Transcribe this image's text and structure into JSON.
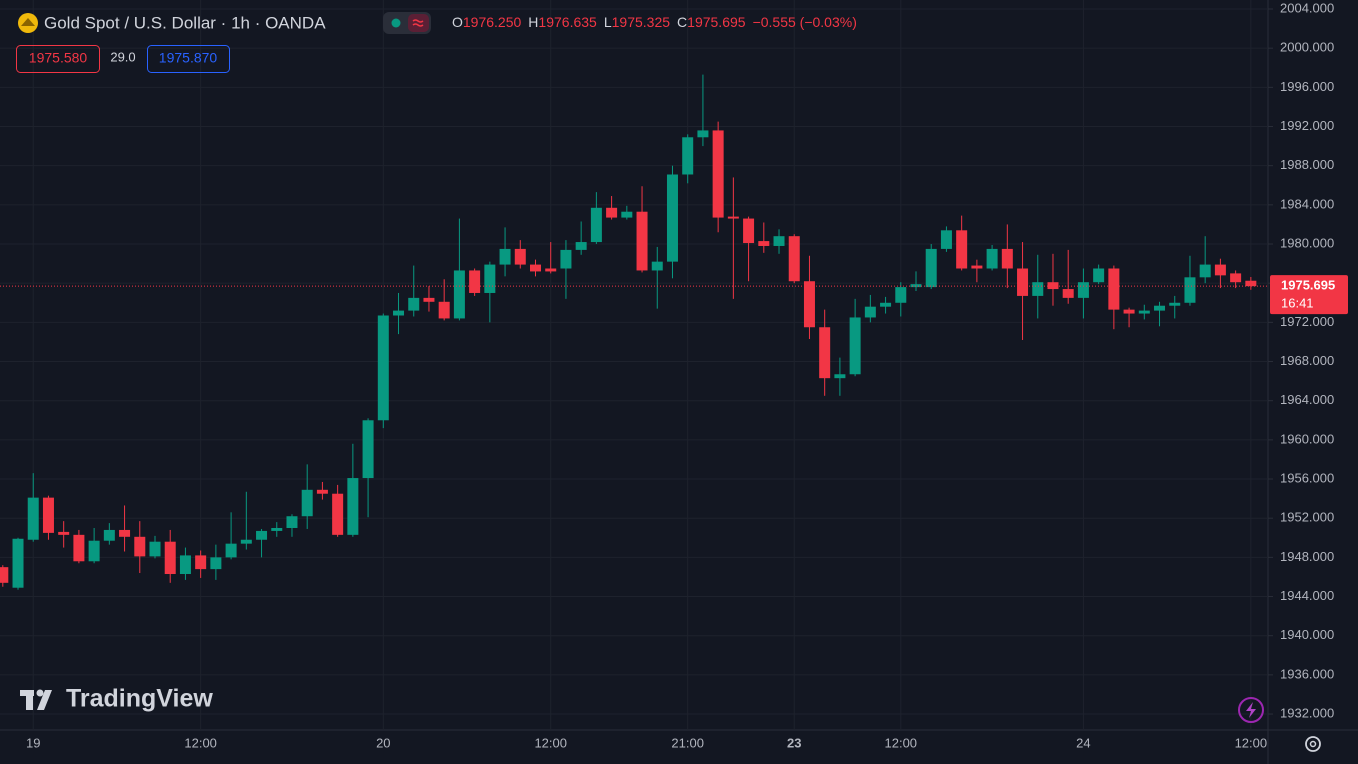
{
  "chart_data": {
    "type": "candlestick",
    "title": "Gold Spot / U.S. Dollar · 1h · OANDA",
    "legend": [
      {
        "label": "O",
        "value": "1976.250"
      },
      {
        "label": "H",
        "value": "1976.635"
      },
      {
        "label": "L",
        "value": "1975.325"
      },
      {
        "label": "C",
        "value": "1975.695"
      }
    ],
    "change": "−0.555 (−0.03%)",
    "bid": "1975.580",
    "spread": "29.0",
    "ask": "1975.870",
    "watermark": "TradingView",
    "last_price": 1975.695,
    "countdown": "16:41",
    "up_color": "#089981",
    "down_color": "#f23645",
    "grid": true,
    "categories": [
      null,
      null,
      "19",
      null,
      null,
      null,
      null,
      null,
      null,
      null,
      null,
      null,
      null,
      "12:00",
      null,
      null,
      null,
      null,
      null,
      null,
      null,
      null,
      null,
      null,
      null,
      "20",
      null,
      null,
      null,
      null,
      null,
      null,
      null,
      null,
      null,
      null,
      "12:00",
      null,
      null,
      null,
      null,
      null,
      null,
      null,
      null,
      "21:00",
      null,
      null,
      null,
      null,
      null,
      null,
      "23",
      null,
      null,
      null,
      null,
      null,
      null,
      "12:00",
      null,
      null,
      null,
      null,
      null,
      null,
      null,
      null,
      null,
      null,
      null,
      "24",
      null,
      null,
      null,
      null,
      null,
      null,
      null,
      null,
      null,
      null,
      "12:00"
    ],
    "open": [
      1947.0,
      1944.9,
      1949.8,
      1954.1,
      1950.6,
      1950.3,
      1947.6,
      1949.7,
      1950.8,
      1950.1,
      1948.1,
      1949.6,
      1946.3,
      1948.2,
      1946.8,
      1948.0,
      1949.4,
      1949.8,
      1950.7,
      1951.0,
      1952.2,
      1954.9,
      1954.5,
      1950.3,
      1956.1,
      1962.0,
      1972.7,
      1973.2,
      1974.5,
      1974.1,
      1972.4,
      1977.3,
      1975.0,
      1977.9,
      1979.5,
      1977.9,
      1977.5,
      1977.5,
      1979.4,
      1980.2,
      1983.7,
      1982.7,
      1983.3,
      1977.3,
      1978.2,
      1987.1,
      1990.9,
      1991.6,
      1982.8,
      1982.6,
      1980.3,
      1979.8,
      1980.8,
      1976.2,
      1971.5,
      1966.3,
      1966.7,
      1972.5,
      1973.6,
      1974.0,
      1975.6,
      1975.6,
      1979.5,
      1981.4,
      1977.8,
      1977.5,
      1979.5,
      1977.5,
      1974.7,
      1976.1,
      1975.4,
      1974.5,
      1976.1,
      1977.5,
      1973.3,
      1972.9,
      1973.2,
      1973.7,
      1974.0,
      1976.6,
      1977.9,
      1977.0,
      1976.25
    ],
    "high": [
      1947.2,
      1950.0,
      1956.6,
      1954.3,
      1951.7,
      1950.8,
      1951.0,
      1951.5,
      1953.3,
      1951.7,
      1950.2,
      1950.8,
      1949.0,
      1948.7,
      1949.3,
      1952.6,
      1954.7,
      1950.9,
      1951.6,
      1952.4,
      1957.5,
      1955.7,
      1955.4,
      1959.6,
      1962.2,
      1972.9,
      1975.0,
      1977.8,
      1975.7,
      1976.4,
      1982.6,
      1977.5,
      1978.2,
      1981.7,
      1980.4,
      1978.4,
      1980.2,
      1980.4,
      1982.3,
      1985.3,
      1984.9,
      1983.9,
      1985.9,
      1979.7,
      1988.0,
      1991.2,
      1997.3,
      1992.5,
      1986.8,
      1982.8,
      1982.2,
      1981.5,
      1981.0,
      1978.8,
      1973.3,
      1968.4,
      1974.4,
      1974.8,
      1974.6,
      1976.1,
      1977.2,
      1980.0,
      1981.8,
      1982.9,
      1978.4,
      1979.9,
      1982.0,
      1980.2,
      1978.9,
      1979.0,
      1979.4,
      1977.5,
      1977.9,
      1977.8,
      1973.5,
      1973.8,
      1974.1,
      1974.7,
      1978.8,
      1980.8,
      1978.5,
      1977.3,
      1976.635
    ],
    "low": [
      1945.0,
      1944.7,
      1949.6,
      1949.8,
      1949.0,
      1947.4,
      1947.4,
      1949.3,
      1948.6,
      1946.4,
      1947.9,
      1945.4,
      1945.7,
      1945.9,
      1945.7,
      1947.8,
      1948.8,
      1948.0,
      1950.1,
      1950.1,
      1950.9,
      1953.9,
      1950.1,
      1950.1,
      1952.1,
      1961.2,
      1970.8,
      1972.6,
      1973.1,
      1972.2,
      1972.2,
      1974.7,
      1972.0,
      1976.7,
      1977.5,
      1976.7,
      1977.0,
      1974.4,
      1978.9,
      1980.0,
      1982.5,
      1982.5,
      1977.1,
      1973.4,
      1976.5,
      1986.2,
      1990.0,
      1981.2,
      1974.4,
      1976.2,
      1979.1,
      1979.0,
      1976.0,
      1970.3,
      1964.5,
      1964.5,
      1966.5,
      1972.0,
      1972.9,
      1972.6,
      1975.2,
      1975.4,
      1979.2,
      1977.3,
      1976.1,
      1977.3,
      1975.5,
      1970.2,
      1972.4,
      1973.7,
      1973.9,
      1972.4,
      1975.9,
      1971.3,
      1971.5,
      1972.3,
      1971.6,
      1972.4,
      1973.7,
      1976.0,
      1975.5,
      1975.5,
      1975.325
    ],
    "close": [
      1945.4,
      1949.9,
      1954.1,
      1950.5,
      1950.3,
      1947.6,
      1949.7,
      1950.8,
      1950.1,
      1948.1,
      1949.6,
      1946.3,
      1948.2,
      1946.8,
      1948.0,
      1949.4,
      1949.8,
      1950.7,
      1951.0,
      1952.2,
      1954.9,
      1954.5,
      1950.3,
      1956.1,
      1962.0,
      1972.7,
      1973.2,
      1974.5,
      1974.1,
      1972.4,
      1977.3,
      1975.0,
      1977.9,
      1979.5,
      1977.9,
      1977.2,
      1977.2,
      1979.4,
      1980.2,
      1983.7,
      1982.7,
      1983.3,
      1977.3,
      1978.2,
      1987.1,
      1990.9,
      1991.6,
      1982.7,
      1982.6,
      1980.1,
      1979.8,
      1980.8,
      1976.2,
      1971.5,
      1966.3,
      1966.7,
      1972.5,
      1973.6,
      1974.0,
      1975.6,
      1975.9,
      1979.5,
      1981.4,
      1977.5,
      1977.5,
      1979.5,
      1977.5,
      1974.7,
      1976.1,
      1975.4,
      1974.5,
      1976.1,
      1977.5,
      1973.3,
      1972.9,
      1973.2,
      1973.7,
      1974.0,
      1976.6,
      1977.9,
      1976.8,
      1976.1,
      1975.695
    ],
    "ylim": [
      1930.37,
      2004.92
    ],
    "yticks": [
      {
        "value": 2004,
        "label": "2004.000"
      },
      {
        "value": 2000,
        "label": "2000.000"
      },
      {
        "value": 1996,
        "label": "1996.000"
      },
      {
        "value": 1992,
        "label": "1992.000"
      },
      {
        "value": 1988,
        "label": "1988.000"
      },
      {
        "value": 1984,
        "label": "1984.000"
      },
      {
        "value": 1980,
        "label": "1980.000"
      },
      {
        "value": 1976,
        "label": "1976.000"
      },
      {
        "value": 1972,
        "label": "1972.000"
      },
      {
        "value": 1968,
        "label": "1968.000"
      },
      {
        "value": 1964,
        "label": "1964.000"
      },
      {
        "value": 1960,
        "label": "1960.000"
      },
      {
        "value": 1956,
        "label": "1956.000"
      },
      {
        "value": 1952,
        "label": "1952.000"
      },
      {
        "value": 1948,
        "label": "1948.000"
      },
      {
        "value": 1944,
        "label": "1944.000"
      },
      {
        "value": 1940,
        "label": "1940.000"
      },
      {
        "value": 1936,
        "label": "1936.000"
      },
      {
        "value": 1932,
        "label": "1932.000"
      }
    ]
  }
}
